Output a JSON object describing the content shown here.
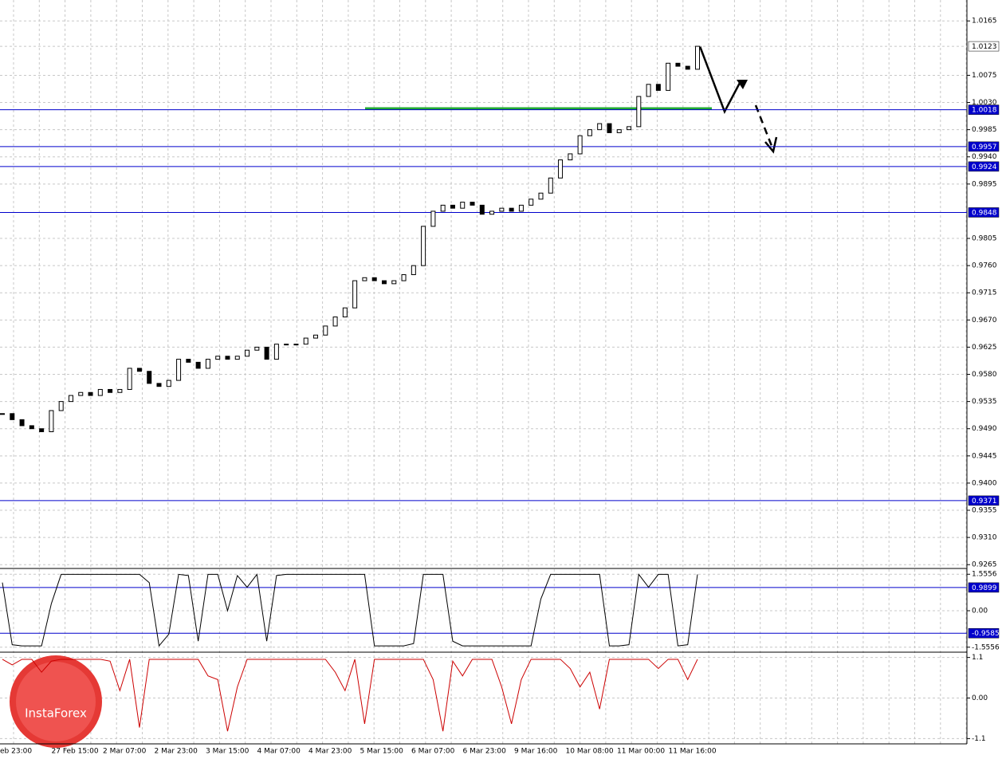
{
  "chart_data": [
    {
      "type": "candlestick",
      "ylim": [
        0.926,
        1.0197
      ],
      "yticks": [
        1.0165,
        1.0075,
        {
          "value": 1.003,
          "label": "1.0030"
        },
        0.9985,
        {
          "value": 0.994,
          "label": "0.9940"
        },
        0.9895,
        0.9805,
        {
          "value": 0.976,
          "label": "0.9760"
        },
        0.9715,
        {
          "value": 0.967,
          "label": "0.9670"
        },
        0.9625,
        {
          "value": 0.958,
          "label": "0.9580"
        },
        0.9535,
        {
          "value": 0.949,
          "label": "0.9490"
        },
        0.9445,
        {
          "value": 0.94,
          "label": "0.9400"
        },
        0.9355,
        {
          "value": 0.931,
          "label": "0.9310"
        },
        0.9265
      ],
      "levels": [
        1.0018,
        0.9957,
        0.9924,
        0.9848,
        0.9371
      ],
      "current": 1.0123,
      "color": "#000000",
      "level_color": "#0000cc",
      "close": [
        0.9515,
        0.9505,
        0.9495,
        0.949,
        0.9485,
        0.952,
        0.9535,
        0.9545,
        0.955,
        0.9545,
        0.9555,
        0.955,
        0.9555,
        0.959,
        0.9585,
        0.9565,
        0.956,
        0.957,
        0.9605,
        0.96,
        0.959,
        0.9605,
        0.961,
        0.9605,
        0.961,
        0.962,
        0.9625,
        0.9605,
        0.963,
        0.963,
        0.963,
        0.964,
        0.9645,
        0.966,
        0.9675,
        0.969,
        0.9735,
        0.974,
        0.9735,
        0.973,
        0.9735,
        0.9745,
        0.976,
        0.9825,
        0.985,
        0.986,
        0.9855,
        0.9865,
        0.986,
        0.9845,
        0.985,
        0.9855,
        0.985,
        0.986,
        0.987,
        0.988,
        0.9905,
        0.9935,
        0.9945,
        0.9975,
        0.9985,
        0.9995,
        0.998,
        0.9985,
        0.999,
        1.004,
        1.006,
        1.005,
        1.0095,
        1.009,
        1.0085,
        1.0123
      ]
    },
    {
      "type": "line",
      "ylim": [
        -1.7,
        1.7
      ],
      "color": "#000000",
      "level_color": "#0000cc",
      "yticks": [
        1.5556,
        {
          "value": 0,
          "label": "0.00"
        },
        -1.5556
      ],
      "levels": [
        0.9899,
        -0.9585
      ],
      "values": [
        1.2,
        -1.45,
        -1.5,
        -1.5,
        -1.5,
        0.3,
        1.55,
        1.55,
        1.55,
        1.55,
        1.55,
        1.55,
        1.55,
        1.55,
        1.55,
        1.2,
        -1.5,
        -1.0,
        1.55,
        1.5,
        -1.3,
        1.55,
        1.55,
        0.0,
        1.5,
        1.0,
        1.55,
        -1.3,
        1.5,
        1.55,
        1.55,
        1.55,
        1.55,
        1.55,
        1.55,
        1.55,
        1.55,
        1.55,
        -1.5,
        -1.5,
        -1.5,
        -1.5,
        -1.4,
        1.55,
        1.55,
        1.55,
        -1.3,
        -1.5,
        -1.5,
        -1.5,
        -1.5,
        -1.5,
        -1.5,
        -1.5,
        -1.5,
        0.5,
        1.55,
        1.55,
        1.55,
        1.55,
        1.55,
        1.55,
        -1.5,
        -1.5,
        -1.45,
        1.55,
        1.0,
        1.55,
        1.55,
        -1.5,
        -1.45,
        1.55
      ]
    },
    {
      "type": "line",
      "ylim": [
        -1.2,
        1.2
      ],
      "color": "#cc0000",
      "yticks": [
        1.1,
        {
          "value": 0,
          "label": "0.00"
        },
        -1.1
      ],
      "values": [
        1.05,
        0.9,
        1.05,
        1.05,
        0.7,
        1.0,
        1.05,
        1.05,
        1.05,
        1.05,
        1.05,
        1.0,
        0.2,
        1.05,
        -0.8,
        1.05,
        1.05,
        1.05,
        1.05,
        1.05,
        1.05,
        0.6,
        0.5,
        -0.9,
        0.3,
        1.05,
        1.05,
        1.05,
        1.05,
        1.05,
        1.05,
        1.05,
        1.05,
        1.05,
        0.7,
        0.2,
        1.05,
        -0.7,
        1.05,
        1.05,
        1.05,
        1.05,
        1.05,
        1.05,
        0.5,
        -0.9,
        1.0,
        0.6,
        1.05,
        1.05,
        1.05,
        0.3,
        -0.7,
        0.5,
        1.05,
        1.05,
        1.05,
        1.05,
        0.8,
        0.3,
        0.7,
        -0.3,
        1.05,
        1.05,
        1.05,
        1.05,
        1.05,
        0.8,
        1.05,
        1.05,
        0.5,
        1.05
      ],
      "xtick_labels": [
        "eb 23:00",
        "27 Feb 15:00",
        "2 Mar 07:00",
        "2 Mar 23:00",
        "3 Mar 15:00",
        "4 Mar 07:00",
        "4 Mar 23:00",
        "5 Mar 15:00",
        "6 Mar 07:00",
        "6 Mar 23:00",
        "9 Mar 16:00",
        "10 Mar 08:00",
        "11 Mar 00:00",
        "11 Mar 16:00"
      ]
    }
  ],
  "watermark": "InstaForex"
}
